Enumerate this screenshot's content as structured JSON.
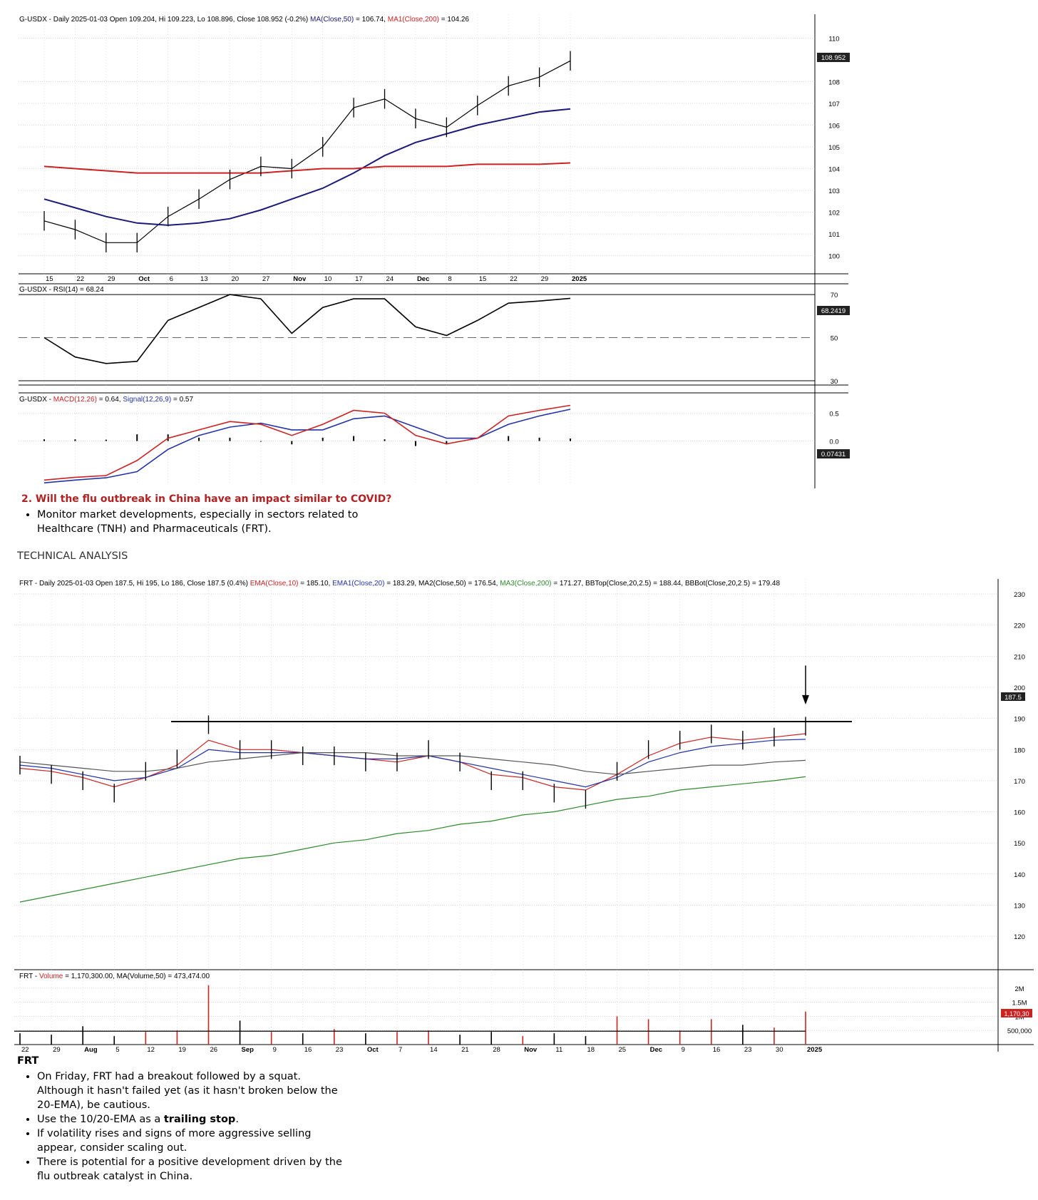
{
  "usdx": {
    "header": {
      "sym": "G-USDX",
      "desc": " - Daily 2025-01-03 Open 109.204, Hi 109.223, Lo 108.896, Close 108.952 (-0.2%) ",
      "ma50": "MA(Close,50)",
      "ma50v": " = 106.74, ",
      "ma200": "MA1(Close,200)",
      "ma200v": " = 104.26"
    },
    "price_ticks": [
      "110",
      "108",
      "107",
      "106",
      "105",
      "104",
      "103",
      "102",
      "101",
      "100"
    ],
    "last_label": "108.952",
    "date_labels": [
      "15",
      "22",
      "29",
      "Oct",
      "6",
      "13",
      "20",
      "27",
      "Nov",
      "10",
      "17",
      "24",
      "Dec",
      "8",
      "15",
      "22",
      "29",
      "2025"
    ],
    "rsi_header": "G-USDX - RSI(14) = 68.24",
    "rsi_ticks": [
      "70",
      "50",
      "30"
    ],
    "rsi_last": "68.2419",
    "macd_header": {
      "sym": "G-USDX - ",
      "macd": "MACD(12,26)",
      "macdv": " = 0.64, ",
      "sig": "Signal(12,26,9)",
      "sigv": " = 0.57"
    },
    "macd_ticks": [
      "0.5",
      "0.0"
    ],
    "macd_last": "0.07431",
    "colors": {
      "ma50": "#1a1a7a",
      "ma200": "#cc2222",
      "macd": "#cc2222",
      "signal": "#2233aa"
    }
  },
  "question": "2.  Will the flu outbreak in China have an impact similar to COVID?",
  "bullets1": [
    "Monitor market developments, especially in sectors related to Healthcare (TNH) and Pharmaceuticals (FRT)."
  ],
  "section_title": "TECHNICAL ANALYSIS",
  "frt": {
    "header": {
      "sym": "FRT",
      "desc": " - Daily 2025-01-03 Open 187.5, Hi 195, Lo 186, Close 187.5 (0.4%) ",
      "ema10": "EMA(Close,10)",
      "ema10v": " = 185.10, ",
      "ema20": "EMA1(Close,20)",
      "ema20v": " = 183.29, ",
      "ma50": "MA2(Close,50)",
      "ma50v": " = 176.54, ",
      "ma200": "MA3(Close,200)",
      "ma200v": " = 171.27, ",
      "bbtop": "BBTop(Close,20,2.5)",
      "bbtopv": " = 188.44, ",
      "bbbot": "BBBot(Close,20,2.5)",
      "bbbotv": " = 179.48"
    },
    "price_ticks": [
      "230",
      "220",
      "210",
      "200",
      "190",
      "180",
      "170",
      "160",
      "150",
      "140",
      "130",
      "120"
    ],
    "last_label": "187.5",
    "vol_header": {
      "sym": "FRT - ",
      "vol": "Volume",
      "volv": " = 1,170,300.00, MA(Volume,50) = 473,474.00"
    },
    "vol_ticks": [
      "2M",
      "1.5M",
      "1M",
      "500,000"
    ],
    "vol_last": "1,170,30",
    "date_labels": [
      "22",
      "29",
      "Aug",
      "5",
      "12",
      "19",
      "26",
      "Sep",
      "9",
      "16",
      "23",
      "Oct",
      "7",
      "14",
      "21",
      "28",
      "Nov",
      "11",
      "18",
      "25",
      "Dec",
      "9",
      "16",
      "23",
      "30",
      "2025"
    ],
    "colors": {
      "ema10": "#cc2222",
      "ema20": "#2233aa",
      "ma50": "#555555",
      "ma200": "#2e8b2e",
      "up": "#cc2222"
    }
  },
  "section2_title": "FRT",
  "bullets2": [
    {
      "pre": "On Friday, FRT had a breakout followed by a squat. Although it hasn't failed yet (as it hasn't broken below the 20-EMA), be cautious.",
      "bold": "",
      "post": ""
    },
    {
      "pre": "Use the 10/20-EMA as a ",
      "bold": "trailing stop",
      "post": "."
    },
    {
      "pre": "If volatility rises and signs of more aggressive selling appear, consider scaling out.",
      "bold": "",
      "post": ""
    },
    {
      "pre": "There is potential for a positive development driven by the flu outbreak catalyst in China.",
      "bold": "",
      "post": ""
    }
  ],
  "chart_data": [
    {
      "type": "line",
      "title": "G-USDX - Daily 2025-01-03 Open 109.204, Hi 109.223, Lo 108.896, Close 108.952 (-0.2%)",
      "x": [
        "15",
        "22",
        "29",
        "Oct",
        "6",
        "13",
        "20",
        "27",
        "Nov",
        "10",
        "17",
        "24",
        "Dec",
        "8",
        "15",
        "22",
        "29",
        "2025"
      ],
      "ylim": [
        99.3,
        110.5
      ],
      "series": [
        {
          "name": "Close",
          "values": [
            101.6,
            101.2,
            100.6,
            100.6,
            101.8,
            102.6,
            103.5,
            104.1,
            104.0,
            105.0,
            106.8,
            107.2,
            106.3,
            105.9,
            106.9,
            107.8,
            108.2,
            108.952
          ]
        },
        {
          "name": "MA(Close,50)",
          "values": [
            102.6,
            102.2,
            101.8,
            101.5,
            101.4,
            101.5,
            101.7,
            102.1,
            102.6,
            103.1,
            103.8,
            104.6,
            105.2,
            105.6,
            106.0,
            106.3,
            106.6,
            106.74
          ]
        },
        {
          "name": "MA1(Close,200)",
          "values": [
            104.1,
            104.0,
            103.9,
            103.8,
            103.8,
            103.8,
            103.8,
            103.8,
            103.9,
            104.0,
            104.0,
            104.1,
            104.1,
            104.1,
            104.2,
            104.2,
            104.2,
            104.26
          ]
        }
      ],
      "rsi": {
        "name": "RSI(14)",
        "last": 68.24,
        "ylim": [
          28,
          75
        ],
        "values": [
          50,
          41,
          38,
          39,
          58,
          64,
          70,
          68,
          52,
          64,
          68,
          68,
          55,
          51,
          58,
          66,
          67,
          68.24
        ]
      },
      "macd": {
        "macd_name": "MACD(12,26)",
        "signal_name": "Signal(12,26,9)",
        "ylim": [
          -0.85,
          0.8
        ],
        "macd": [
          -0.7,
          -0.65,
          -0.62,
          -0.35,
          0.05,
          0.2,
          0.35,
          0.3,
          0.1,
          0.3,
          0.55,
          0.5,
          0.1,
          -0.05,
          0.05,
          0.45,
          0.55,
          0.64
        ],
        "signal": [
          -0.75,
          -0.7,
          -0.66,
          -0.55,
          -0.15,
          0.1,
          0.25,
          0.32,
          0.2,
          0.2,
          0.4,
          0.45,
          0.25,
          0.05,
          0.05,
          0.3,
          0.45,
          0.57
        ],
        "hist": [
          0.05,
          0.05,
          0.04,
          0.2,
          0.2,
          0.1,
          0.1,
          -0.02,
          -0.1,
          0.1,
          0.15,
          0.05,
          -0.15,
          -0.1,
          0.0,
          0.15,
          0.1,
          0.07431
        ]
      }
    },
    {
      "type": "line",
      "title": "FRT - Daily 2025-01-03 Open 187.5, Hi 195, Lo 186, Close 187.5 (0.4%)",
      "x": [
        "22",
        "29",
        "Aug",
        "5",
        "12",
        "19",
        "26",
        "Sep",
        "9",
        "16",
        "23",
        "Oct",
        "7",
        "14",
        "21",
        "28",
        "Nov",
        "11",
        "18",
        "25",
        "Dec",
        "9",
        "16",
        "23",
        "30",
        "2025"
      ],
      "ylim": [
        112,
        233
      ],
      "series": [
        {
          "name": "Close",
          "values": [
            175,
            172,
            170,
            166,
            173,
            177,
            188,
            180,
            180,
            178,
            178,
            176,
            176,
            180,
            176,
            170,
            170,
            166,
            164,
            173,
            180,
            183,
            185,
            183,
            184,
            187.5
          ]
        },
        {
          "name": "EMA(Close,10)",
          "values": [
            174,
            173,
            171,
            168,
            171,
            175,
            183,
            180,
            180,
            179,
            178,
            177,
            176,
            178,
            176,
            172,
            171,
            168,
            167,
            172,
            178,
            182,
            184,
            183,
            184,
            185.1
          ]
        },
        {
          "name": "EMA1(Close,20)",
          "values": [
            175,
            174,
            172,
            170,
            171,
            174,
            180,
            179,
            179,
            179,
            178,
            177,
            177,
            178,
            176,
            174,
            172,
            170,
            168,
            171,
            176,
            179,
            181,
            182,
            183,
            183.29
          ]
        },
        {
          "name": "MA2(Close,50)",
          "values": [
            176,
            175,
            174,
            173,
            173,
            174,
            176,
            177,
            178,
            179,
            179,
            179,
            178,
            178,
            178,
            177,
            176,
            175,
            173,
            172,
            173,
            174,
            175,
            175,
            176,
            176.54
          ]
        },
        {
          "name": "MA3(Close,200)",
          "values": [
            131,
            133,
            135,
            137,
            139,
            141,
            143,
            145,
            146,
            148,
            150,
            151,
            153,
            154,
            156,
            157,
            159,
            160,
            162,
            164,
            165,
            167,
            168,
            169,
            170,
            171.27
          ]
        }
      ],
      "resistance": 189,
      "volume": {
        "name": "Volume",
        "ylim": [
          0,
          2200000
        ],
        "ma_name": "MA(Volume,50)",
        "ma": 473474,
        "values": [
          400000,
          350000,
          650000,
          300000,
          450000,
          500000,
          2100000,
          850000,
          450000,
          400000,
          550000,
          400000,
          450000,
          500000,
          350000,
          450000,
          300000,
          400000,
          300000,
          1000000,
          900000,
          500000,
          900000,
          700000,
          600000,
          1170300
        ]
      }
    }
  ]
}
